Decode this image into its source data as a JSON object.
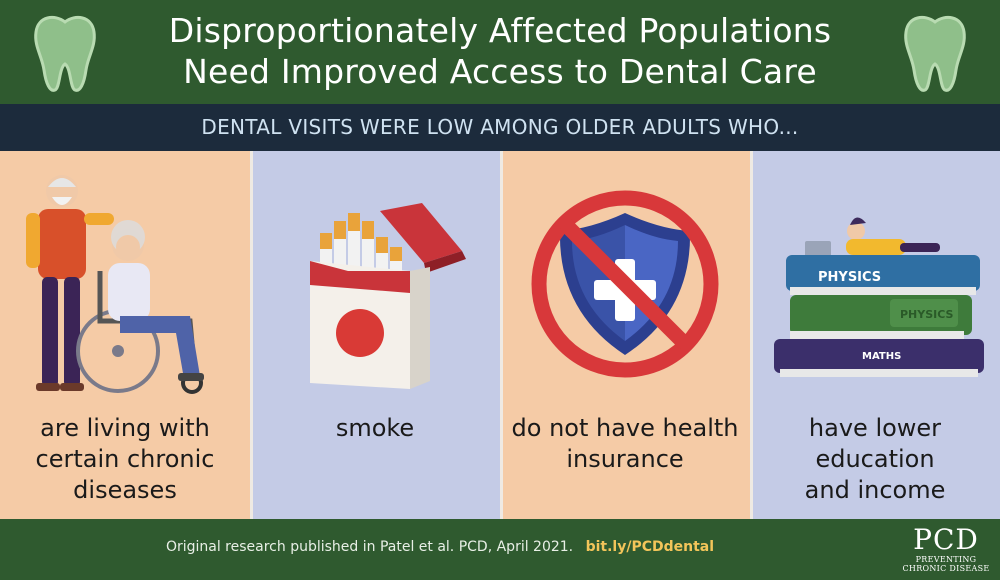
{
  "header": {
    "title_line1": "Disproportionately Affected Populations",
    "title_line2": "Need Improved Access to Dental Care",
    "icon_left": "tooth-icon",
    "icon_right": "tooth-icon"
  },
  "subheader": {
    "text": "DENTAL VISITS WERE LOW AMONG OLDER ADULTS WHO..."
  },
  "panels": [
    {
      "icon": "elderly-couple-wheelchair-icon",
      "caption_lines": [
        "are living with",
        "certain chronic",
        "diseases"
      ]
    },
    {
      "icon": "cigarette-pack-icon",
      "caption_lines": [
        "smoke"
      ]
    },
    {
      "icon": "no-insurance-shield-icon",
      "caption_lines": [
        "do not have health",
        "insurance"
      ]
    },
    {
      "icon": "books-stack-icon",
      "caption_lines": [
        "have lower",
        "education",
        "and income"
      ],
      "book_labels": [
        "PHYSICS",
        "PHYSICS",
        "MATHS"
      ]
    }
  ],
  "footer": {
    "source": "Original research published in Patel et al. PCD, April 2021.",
    "link": "bit.ly/PCDdental",
    "logo_main": "PCD",
    "logo_line1": "PREVENTING",
    "logo_line2": "CHRONIC DISEASE"
  },
  "colors": {
    "green": "#2f5a2f",
    "navy": "#1c2b3c",
    "peach": "#f5cba6",
    "lavender": "#c4cbe6",
    "link": "#f3c55a"
  }
}
